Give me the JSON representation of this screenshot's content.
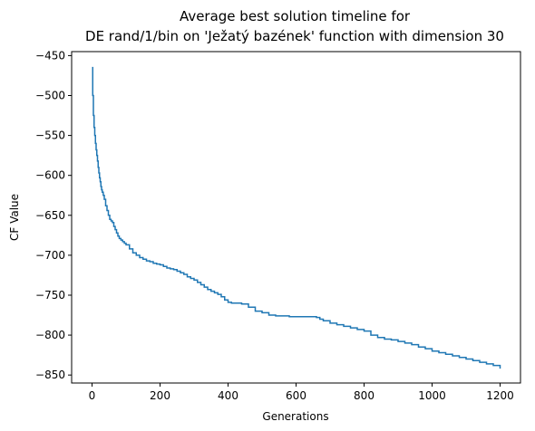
{
  "chart_data": {
    "type": "line",
    "title_lines": [
      "Average best solution timeline for",
      "DE rand/1/bin on 'Ježatý bazének' function with dimension 30"
    ],
    "xlabel": "Generations",
    "ylabel": "CF Value",
    "xlim": [
      -60,
      1260
    ],
    "ylim": [
      -860,
      -445
    ],
    "x_ticks": [
      0,
      200,
      400,
      600,
      800,
      1000,
      1200
    ],
    "y_ticks": [
      -450,
      -500,
      -550,
      -600,
      -650,
      -700,
      -750,
      -800,
      -850
    ],
    "grid": false,
    "line_color": "#1f77b4",
    "series": [
      {
        "x": [
          0,
          2,
          4,
          6,
          8,
          10,
          12,
          14,
          16,
          18,
          20,
          22,
          24,
          26,
          28,
          30,
          33,
          36,
          40,
          44,
          48,
          52,
          56,
          60,
          64,
          68,
          72,
          76,
          80,
          85,
          90,
          95,
          100,
          110,
          120,
          130,
          140,
          150,
          160,
          170,
          180,
          190,
          200,
          210,
          220,
          230,
          240,
          250,
          260,
          270,
          280,
          290,
          300,
          310,
          320,
          330,
          340,
          350,
          360,
          370,
          380,
          390,
          400,
          410,
          420,
          440,
          460,
          480,
          500,
          520,
          540,
          560,
          580,
          600,
          620,
          640,
          660,
          670,
          680,
          700,
          720,
          740,
          760,
          780,
          800,
          820,
          840,
          860,
          880,
          900,
          920,
          940,
          960,
          980,
          1000,
          1020,
          1040,
          1060,
          1080,
          1100,
          1120,
          1140,
          1160,
          1180,
          1200
        ],
        "y": [
          -465,
          -500,
          -525,
          -540,
          -550,
          -560,
          -568,
          -575,
          -582,
          -590,
          -597,
          -603,
          -608,
          -614,
          -618,
          -621,
          -625,
          -630,
          -638,
          -644,
          -650,
          -655,
          -657,
          -659,
          -664,
          -668,
          -672,
          -676,
          -679,
          -681,
          -683,
          -685,
          -687,
          -692,
          -697,
          -700,
          -703,
          -705,
          -707,
          -708,
          -710,
          -711,
          -712,
          -714,
          -716,
          -717,
          -718,
          -720,
          -722,
          -724,
          -727,
          -729,
          -731,
          -734,
          -737,
          -740,
          -743,
          -745,
          -747,
          -749,
          -752,
          -756,
          -759,
          -760,
          -760,
          -761,
          -765,
          -770,
          -772,
          -775,
          -776,
          -776,
          -777,
          -777,
          -777,
          -777,
          -778,
          -780,
          -782,
          -785,
          -787,
          -789,
          -791,
          -793,
          -795,
          -800,
          -803,
          -805,
          -806,
          -808,
          -810,
          -812,
          -815,
          -817,
          -820,
          -822,
          -824,
          -826,
          -828,
          -830,
          -832,
          -834,
          -836,
          -838,
          -842
        ]
      }
    ]
  }
}
